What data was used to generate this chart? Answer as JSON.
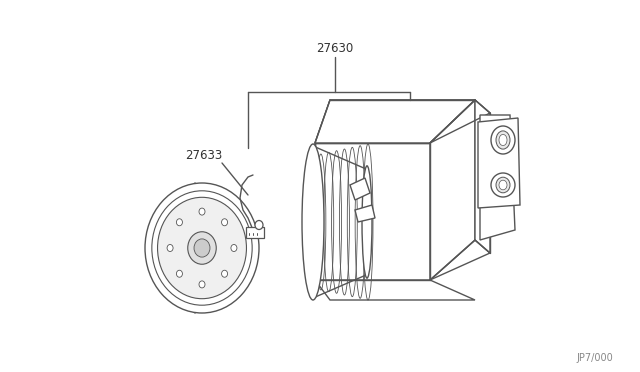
{
  "background_color": "#ffffff",
  "line_color": "#555555",
  "line_width": 1.0,
  "label_27630": "27630",
  "label_27633": "27633",
  "ref_code": "JP7/000",
  "fig_width": 6.4,
  "fig_height": 3.72,
  "dpi": 100
}
